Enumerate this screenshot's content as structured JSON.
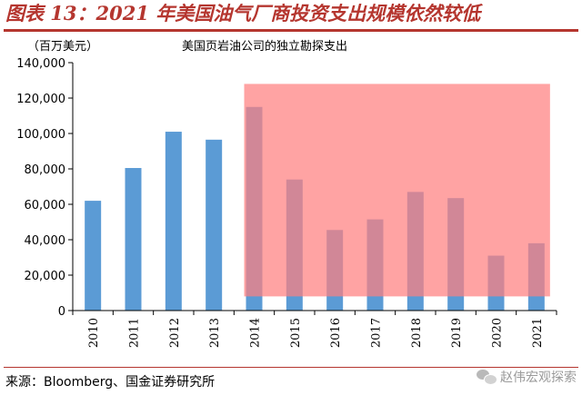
{
  "figure": {
    "title": "图表 13：2021 年美国油气厂商投资支出规模依然较低",
    "source": "来源：Bloomberg、国金证券研究所",
    "watermark": "赵伟宏观探索",
    "watermark_icon": "wechat-icon"
  },
  "colors": {
    "title": "#b5362f",
    "bar": "#5b9bd5",
    "highlight": "#ff7f7f"
  },
  "chart_data": {
    "type": "bar",
    "title": "美国页岩油公司的独立勘探支出",
    "ylabel": "（百万美元）",
    "xlabel": "",
    "categories": [
      "2010",
      "2011",
      "2012",
      "2013",
      "2014",
      "2015",
      "2016",
      "2017",
      "2018",
      "2019",
      "2020",
      "2021"
    ],
    "values": [
      62000,
      80500,
      101000,
      96500,
      115000,
      74000,
      45500,
      51500,
      67000,
      63500,
      31000,
      38000
    ],
    "ylim": [
      0,
      140000
    ],
    "yticks": [
      0,
      20000,
      40000,
      60000,
      80000,
      100000,
      120000,
      140000
    ],
    "ytick_labels": [
      "0",
      "20,000",
      "40,000",
      "60,000",
      "80,000",
      "100,000",
      "120,000",
      "140,000"
    ],
    "highlight_region": {
      "x_from": "2014",
      "x_to": "2021",
      "y_from": 8000,
      "y_to": 128000
    },
    "grid": false,
    "legend": "none"
  }
}
